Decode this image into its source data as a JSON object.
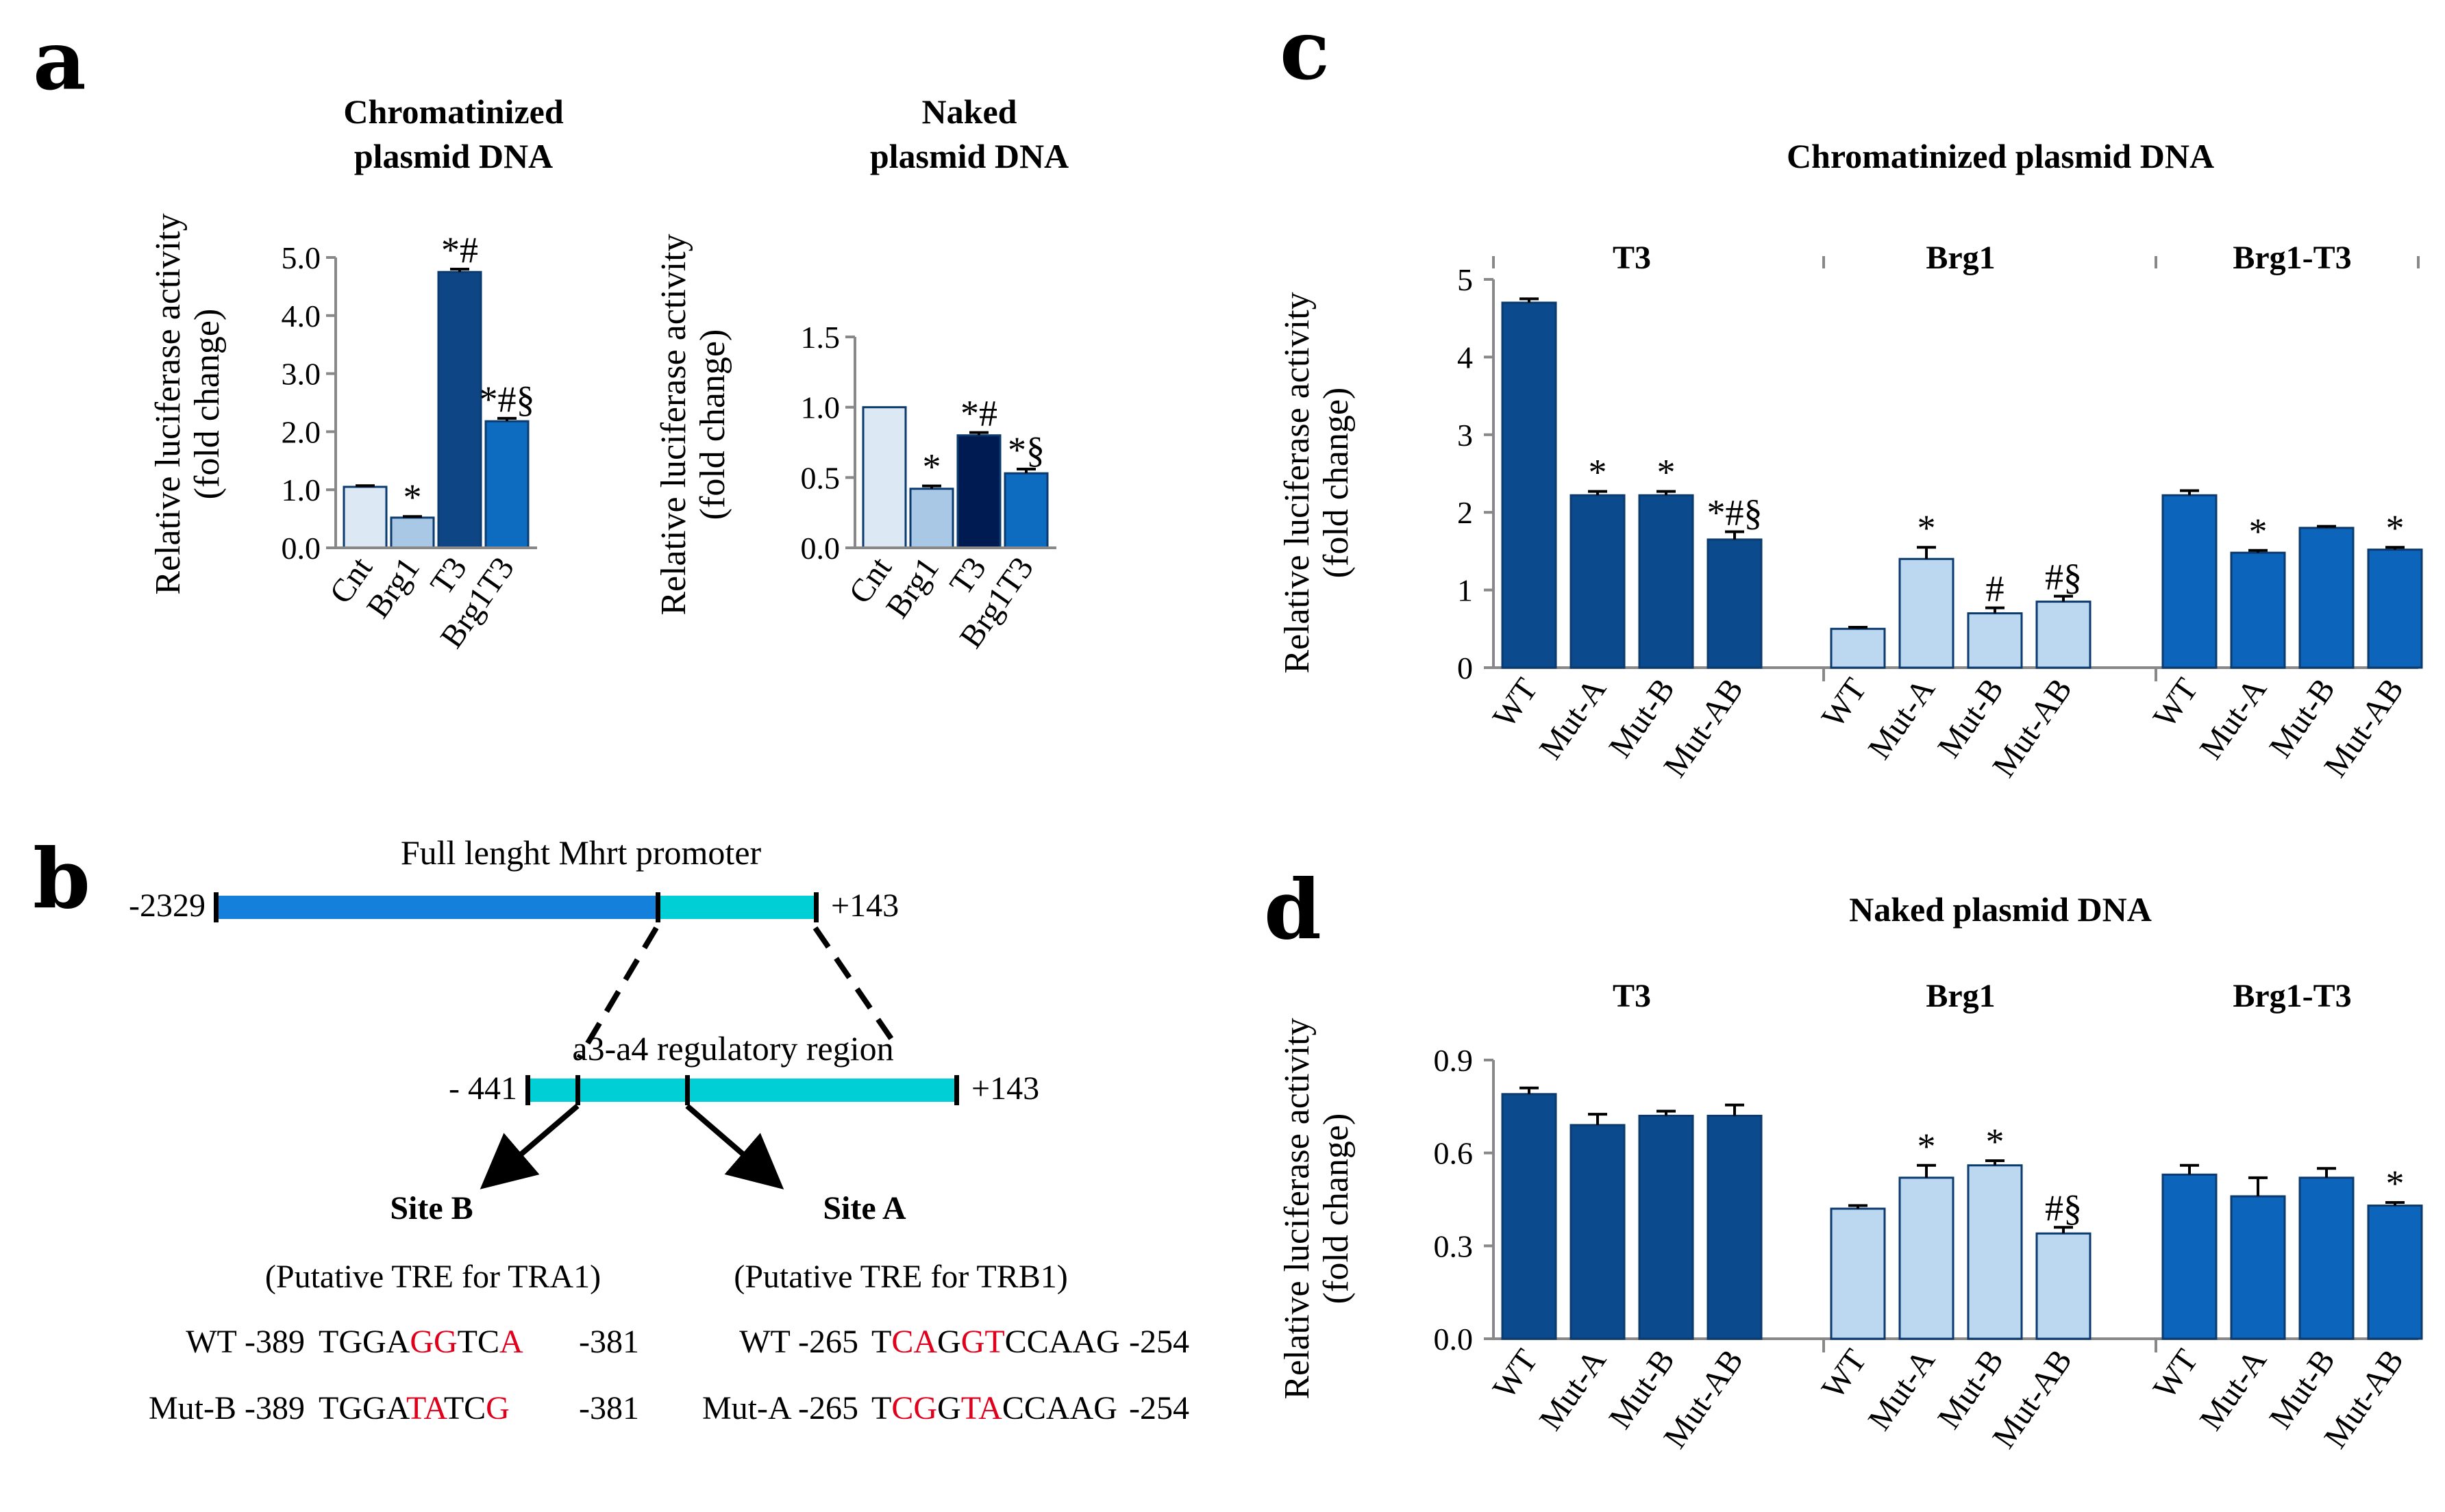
{
  "panels": {
    "a": "a",
    "b": "b",
    "c": "c",
    "d": "d"
  },
  "colors": {
    "cnt": "#dce9f5",
    "brg1": "#a9c8e6",
    "t3_chrom": "#0d4585",
    "t3_naked": "#001a52",
    "brg1t3": "#0d6cc0",
    "dark_blue": "#0b4a8c",
    "light_blue": "#bcd7f0",
    "mid_blue": "#0c65bb",
    "promoter_blue": "#1580dc",
    "promoter_cyan": "#00d0d6",
    "mutation_red": "#e0001b",
    "axis": "#888888"
  },
  "chart_data": [
    {
      "id": "a1",
      "type": "bar",
      "title": "Chromatinized plasmid DNA",
      "title_lines": [
        "Chromatinized",
        "plasmid DNA"
      ],
      "ylabel_lines": [
        "Relative luciferase activity",
        "(fold change)"
      ],
      "categories": [
        "Cnt",
        "Brg1",
        "T3",
        "Brg1T3"
      ],
      "values": [
        1.05,
        0.52,
        4.75,
        2.18
      ],
      "errors": [
        0.02,
        0.02,
        0.05,
        0.05
      ],
      "annotations": [
        "",
        "*",
        "*#",
        "*#§"
      ],
      "bar_colors": [
        "#dce9f5",
        "#a9c8e6",
        "#0d4585",
        "#0d6cc0"
      ],
      "ylim": [
        0,
        5.0
      ],
      "yticks": [
        "0.0",
        "1.0",
        "2.0",
        "3.0",
        "4.0",
        "5.0"
      ]
    },
    {
      "id": "a2",
      "type": "bar",
      "title": "Naked plasmid DNA",
      "title_lines": [
        "Naked",
        "plasmid DNA"
      ],
      "ylabel_lines": [
        "Relative luciferase activity",
        "(fold change)"
      ],
      "categories": [
        "Cnt",
        "Brg1",
        "T3",
        "Brg1T3"
      ],
      "values": [
        1.0,
        0.42,
        0.8,
        0.53
      ],
      "errors": [
        0.0,
        0.02,
        0.02,
        0.03
      ],
      "annotations": [
        "",
        "*",
        "*#",
        "*§"
      ],
      "bar_colors": [
        "#dce9f5",
        "#a9c8e6",
        "#001a52",
        "#0d6cc0"
      ],
      "ylim": [
        0,
        1.5
      ],
      "yticks": [
        "0.0",
        "0.5",
        "1.0",
        "1.5"
      ]
    },
    {
      "id": "c",
      "type": "bar",
      "title": "Chromatinized plasmid DNA",
      "ylabel_lines": [
        "Relative luciferase activity",
        "(fold change)"
      ],
      "groups": [
        "T3",
        "Brg1",
        "Brg1-T3"
      ],
      "categories": [
        "WT",
        "Mut-A",
        "Mut-B",
        "Mut-AB"
      ],
      "series": [
        {
          "name": "T3",
          "values": [
            4.7,
            2.22,
            2.22,
            1.65
          ],
          "errors": [
            0.05,
            0.05,
            0.05,
            0.1
          ],
          "annotations": [
            "",
            "*",
            "*",
            "*#§"
          ]
        },
        {
          "name": "Brg1",
          "values": [
            0.5,
            1.4,
            0.7,
            0.85
          ],
          "errors": [
            0.02,
            0.15,
            0.07,
            0.07
          ],
          "annotations": [
            "",
            "*",
            "#",
            "#§"
          ]
        },
        {
          "name": "Brg1-T3",
          "values": [
            2.22,
            1.48,
            1.8,
            1.52
          ],
          "errors": [
            0.06,
            0.03,
            0.02,
            0.03
          ],
          "annotations": [
            "",
            "*",
            "",
            "*"
          ]
        }
      ],
      "group_colors": [
        "#0b4a8c",
        "#bcd7f0",
        "#0c65bb"
      ],
      "ylim": [
        0,
        5
      ],
      "yticks": [
        "0",
        "1",
        "2",
        "3",
        "4",
        "5"
      ]
    },
    {
      "id": "d",
      "type": "bar",
      "title": "Naked plasmid DNA",
      "ylabel_lines": [
        "Relative luciferase activity",
        "(fold change)"
      ],
      "groups": [
        "T3",
        "Brg1",
        "Brg1-T3"
      ],
      "categories": [
        "WT",
        "Mut-A",
        "Mut-B",
        "Mut-AB"
      ],
      "series": [
        {
          "name": "T3",
          "values": [
            0.79,
            0.69,
            0.72,
            0.72
          ],
          "errors": [
            0.02,
            0.035,
            0.015,
            0.035
          ],
          "annotations": [
            "",
            "",
            "",
            ""
          ]
        },
        {
          "name": "Brg1",
          "values": [
            0.42,
            0.52,
            0.56,
            0.34
          ],
          "errors": [
            0.01,
            0.04,
            0.015,
            0.02
          ],
          "annotations": [
            "",
            "*",
            "*",
            "#§"
          ]
        },
        {
          "name": "Brg1-T3",
          "values": [
            0.53,
            0.46,
            0.52,
            0.43
          ],
          "errors": [
            0.03,
            0.06,
            0.03,
            0.01
          ],
          "annotations": [
            "",
            "",
            "",
            "*"
          ]
        }
      ],
      "group_colors": [
        "#0b4a8c",
        "#bcd7f0",
        "#0c65bb"
      ],
      "ylim": [
        0,
        0.9
      ],
      "yticks": [
        "0.0",
        "0.3",
        "0.6",
        "0.9"
      ]
    }
  ],
  "diagram": {
    "full_title": "Full lenght Mhrt  promoter",
    "full_start": "-2329",
    "full_end": "+143",
    "region_title": "a3-a4 regulatory  region",
    "region_start": "- 441",
    "region_end": "+143",
    "site_b": {
      "name": "Site B",
      "desc": "(Putative TRE for TRA1)",
      "rows": [
        {
          "label": "WT -389",
          "end": "-381",
          "seq": [
            [
              "TGGA",
              false
            ],
            [
              "GG",
              true
            ],
            [
              "TC",
              false
            ],
            [
              "A",
              true
            ]
          ]
        },
        {
          "label": "Mut-B -389",
          "end": "-381",
          "seq": [
            [
              "TGGA",
              false
            ],
            [
              "TA",
              true
            ],
            [
              "TC",
              false
            ],
            [
              "G",
              true
            ]
          ]
        }
      ]
    },
    "site_a": {
      "name": "Site A",
      "desc": "(Putative TRE for TRB1)",
      "rows": [
        {
          "label": "WT -265",
          "end": "-254",
          "seq": [
            [
              "T",
              false
            ],
            [
              "CA",
              true
            ],
            [
              "G",
              false
            ],
            [
              "GT",
              true
            ],
            [
              "CCAAG",
              false
            ]
          ]
        },
        {
          "label": "Mut-A -265",
          "end": "-254",
          "seq": [
            [
              "T",
              false
            ],
            [
              "CG",
              true
            ],
            [
              "G",
              false
            ],
            [
              "TA",
              true
            ],
            [
              "CCAAG",
              false
            ]
          ]
        }
      ]
    }
  }
}
